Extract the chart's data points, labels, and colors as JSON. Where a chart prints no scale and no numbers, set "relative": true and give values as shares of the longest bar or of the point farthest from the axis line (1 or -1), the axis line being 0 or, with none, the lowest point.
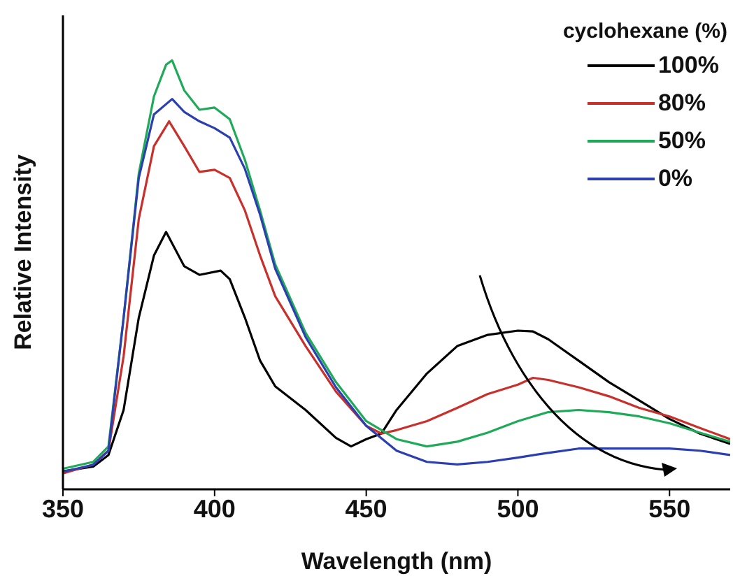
{
  "chart_data": {
    "type": "line",
    "xlabel": "Wavelength (nm)",
    "ylabel": "Relative Intensity",
    "legend_title": "cyclohexane (%)",
    "legend": "top right",
    "relative": true,
    "xlim": [
      350,
      570
    ],
    "xticks": [
      350,
      400,
      450,
      500,
      550
    ],
    "grid": false,
    "marker": "none",
    "line_style": "solid",
    "series": [
      {
        "name": "100%",
        "color": "#000000",
        "x": [
          350,
          360,
          365,
          370,
          375,
          380,
          384,
          390,
          395,
          402,
          405,
          410,
          415,
          420,
          430,
          440,
          445,
          450,
          455,
          460,
          470,
          480,
          490,
          500,
          505,
          510,
          520,
          530,
          540,
          550,
          560,
          570
        ],
        "values": [
          0.042,
          0.053,
          0.08,
          0.185,
          0.4,
          0.545,
          0.6,
          0.52,
          0.5,
          0.51,
          0.49,
          0.4,
          0.3,
          0.24,
          0.185,
          0.12,
          0.1,
          0.117,
          0.13,
          0.185,
          0.27,
          0.334,
          0.36,
          0.37,
          0.368,
          0.35,
          0.3,
          0.25,
          0.207,
          0.164,
          0.13,
          0.106
        ]
      },
      {
        "name": "80%",
        "color": "#c8302c",
        "x": [
          350,
          360,
          365,
          370,
          375,
          380,
          385,
          390,
          395,
          400,
          405,
          410,
          415,
          420,
          430,
          440,
          450,
          455,
          460,
          470,
          480,
          490,
          500,
          505,
          510,
          520,
          530,
          540,
          550,
          560,
          570
        ],
        "values": [
          0.037,
          0.058,
          0.09,
          0.31,
          0.63,
          0.8,
          0.858,
          0.8,
          0.74,
          0.745,
          0.726,
          0.65,
          0.545,
          0.45,
          0.334,
          0.228,
          0.148,
          0.13,
          0.138,
          0.159,
          0.19,
          0.222,
          0.244,
          0.26,
          0.255,
          0.238,
          0.217,
          0.19,
          0.17,
          0.143,
          0.117
        ]
      },
      {
        "name": "50%",
        "color": "#1faa5a",
        "x": [
          350,
          360,
          365,
          370,
          375,
          380,
          384,
          386,
          390,
          395,
          400,
          405,
          410,
          415,
          420,
          430,
          440,
          450,
          460,
          470,
          480,
          490,
          500,
          510,
          520,
          530,
          540,
          550,
          560,
          570
        ],
        "values": [
          0.048,
          0.064,
          0.1,
          0.4,
          0.736,
          0.916,
          0.99,
          1,
          0.93,
          0.885,
          0.89,
          0.863,
          0.768,
          0.65,
          0.524,
          0.365,
          0.25,
          0.159,
          0.117,
          0.1,
          0.111,
          0.132,
          0.159,
          0.18,
          0.185,
          0.18,
          0.17,
          0.154,
          0.132,
          0.111
        ]
      },
      {
        "name": "0%",
        "color": "#2b3fb0",
        "x": [
          350,
          360,
          365,
          370,
          375,
          380,
          386,
          390,
          395,
          400,
          405,
          410,
          415,
          420,
          430,
          440,
          450,
          460,
          470,
          480,
          490,
          500,
          510,
          520,
          530,
          540,
          550,
          560,
          570
        ],
        "values": [
          0.041,
          0.057,
          0.09,
          0.4,
          0.726,
          0.874,
          0.91,
          0.88,
          0.858,
          0.842,
          0.82,
          0.747,
          0.64,
          0.514,
          0.355,
          0.238,
          0.148,
          0.09,
          0.064,
          0.058,
          0.064,
          0.074,
          0.085,
          0.095,
          0.095,
          0.095,
          0.095,
          0.09,
          0.08
        ]
      }
    ]
  }
}
